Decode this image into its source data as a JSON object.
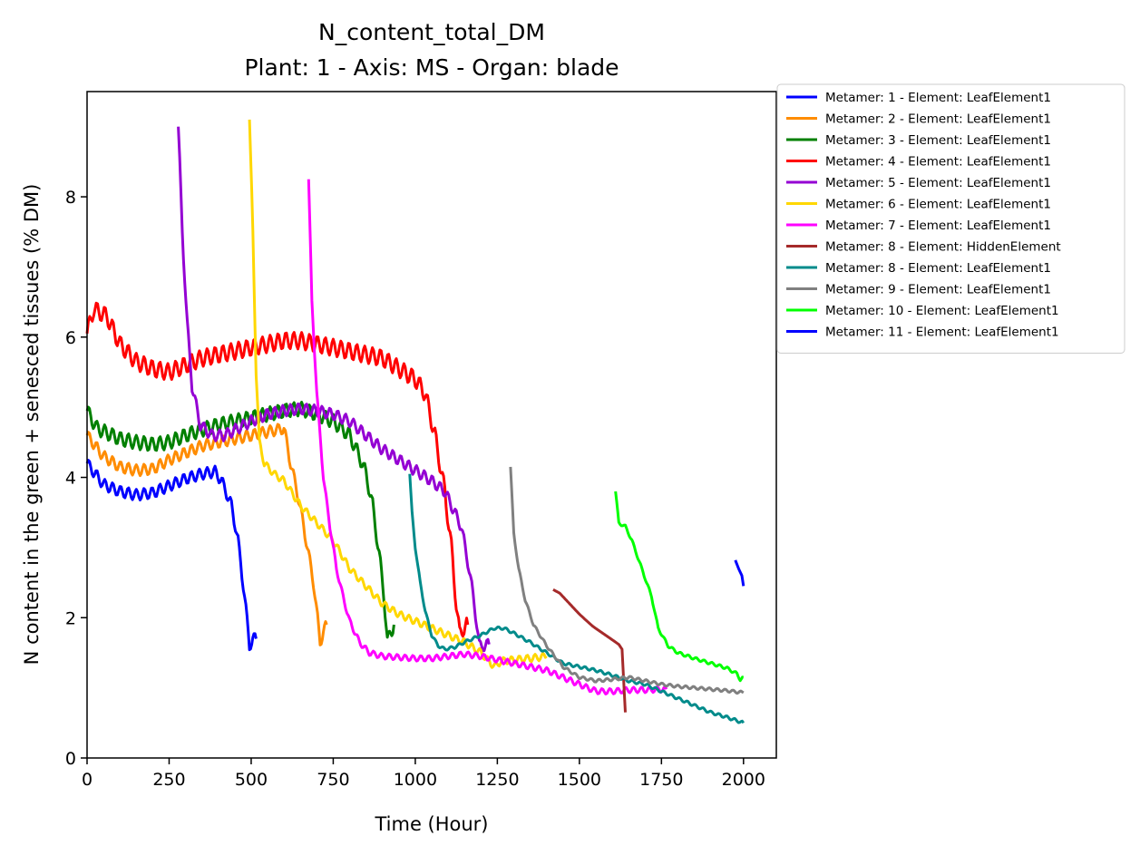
{
  "chart_data": {
    "type": "line",
    "title": "N_content_total_DM",
    "subtitle": "Plant: 1 - Axis: MS - Organ: blade",
    "xlabel": "Time (Hour)",
    "ylabel": "N content in the green + senesced tissues (% DM)",
    "xlim": [
      0,
      2100
    ],
    "ylim": [
      0,
      9.5
    ],
    "xticks": [
      0,
      250,
      500,
      750,
      1000,
      1250,
      1500,
      1750,
      2000
    ],
    "yticks": [
      0,
      2,
      4,
      6,
      8
    ],
    "grid": false,
    "legend_position": "outside-top-right",
    "series": [
      {
        "name": "Metamer: 1 - Element: LeafElement1",
        "color": "#0000ff",
        "oscillation": 0.08,
        "points": [
          [
            0,
            4.2
          ],
          [
            50,
            3.9
          ],
          [
            100,
            3.8
          ],
          [
            150,
            3.75
          ],
          [
            200,
            3.78
          ],
          [
            250,
            3.88
          ],
          [
            300,
            3.98
          ],
          [
            350,
            4.05
          ],
          [
            390,
            4.08
          ],
          [
            410,
            3.95
          ],
          [
            440,
            3.6
          ],
          [
            460,
            3.1
          ],
          [
            480,
            2.3
          ],
          [
            495,
            1.6
          ],
          [
            505,
            1.7
          ],
          [
            515,
            1.7
          ]
        ]
      },
      {
        "name": "Metamer: 2 - Element: LeafElement1",
        "color": "#ff8c00",
        "oscillation": 0.08,
        "points": [
          [
            0,
            4.6
          ],
          [
            50,
            4.3
          ],
          [
            100,
            4.15
          ],
          [
            150,
            4.1
          ],
          [
            200,
            4.12
          ],
          [
            250,
            4.25
          ],
          [
            300,
            4.35
          ],
          [
            350,
            4.45
          ],
          [
            400,
            4.5
          ],
          [
            450,
            4.55
          ],
          [
            500,
            4.6
          ],
          [
            550,
            4.65
          ],
          [
            600,
            4.7
          ],
          [
            620,
            4.2
          ],
          [
            640,
            3.8
          ],
          [
            660,
            3.3
          ],
          [
            690,
            2.5
          ],
          [
            710,
            1.65
          ],
          [
            720,
            1.8
          ],
          [
            730,
            1.9
          ]
        ]
      },
      {
        "name": "Metamer: 3 - Element: LeafElement1",
        "color": "#008000",
        "oscillation": 0.1,
        "points": [
          [
            0,
            4.95
          ],
          [
            30,
            4.7
          ],
          [
            100,
            4.55
          ],
          [
            150,
            4.5
          ],
          [
            200,
            4.47
          ],
          [
            250,
            4.5
          ],
          [
            300,
            4.6
          ],
          [
            350,
            4.68
          ],
          [
            400,
            4.75
          ],
          [
            450,
            4.8
          ],
          [
            500,
            4.85
          ],
          [
            550,
            4.9
          ],
          [
            600,
            4.95
          ],
          [
            650,
            4.98
          ],
          [
            700,
            4.9
          ],
          [
            750,
            4.8
          ],
          [
            800,
            4.6
          ],
          [
            830,
            4.3
          ],
          [
            850,
            4.05
          ],
          [
            870,
            3.6
          ],
          [
            890,
            2.9
          ],
          [
            905,
            2.3
          ],
          [
            915,
            1.65
          ],
          [
            925,
            1.8
          ],
          [
            935,
            1.9
          ]
        ]
      },
      {
        "name": "Metamer: 4 - Element: LeafElement1",
        "color": "#ff0000",
        "oscillation": 0.12,
        "points": [
          [
            0,
            6.05
          ],
          [
            20,
            6.4
          ],
          [
            60,
            6.3
          ],
          [
            100,
            5.9
          ],
          [
            150,
            5.65
          ],
          [
            200,
            5.55
          ],
          [
            250,
            5.5
          ],
          [
            300,
            5.6
          ],
          [
            350,
            5.7
          ],
          [
            400,
            5.75
          ],
          [
            450,
            5.8
          ],
          [
            500,
            5.85
          ],
          [
            550,
            5.9
          ],
          [
            600,
            5.95
          ],
          [
            650,
            5.95
          ],
          [
            700,
            5.9
          ],
          [
            750,
            5.85
          ],
          [
            800,
            5.8
          ],
          [
            850,
            5.75
          ],
          [
            900,
            5.7
          ],
          [
            950,
            5.55
          ],
          [
            1000,
            5.4
          ],
          [
            1030,
            5.2
          ],
          [
            1060,
            4.6
          ],
          [
            1090,
            3.8
          ],
          [
            1110,
            3.0
          ],
          [
            1125,
            2.2
          ],
          [
            1135,
            1.75
          ],
          [
            1145,
            1.85
          ],
          [
            1160,
            1.9
          ]
        ]
      },
      {
        "name": "Metamer: 5 - Element: LeafElement1",
        "color": "#9400d3",
        "oscillation": 0.08,
        "points": [
          [
            278,
            9.0
          ],
          [
            290,
            7.5
          ],
          [
            305,
            6.2
          ],
          [
            320,
            5.3
          ],
          [
            345,
            4.75
          ],
          [
            380,
            4.6
          ],
          [
            420,
            4.6
          ],
          [
            460,
            4.7
          ],
          [
            500,
            4.8
          ],
          [
            550,
            4.9
          ],
          [
            600,
            4.95
          ],
          [
            650,
            4.98
          ],
          [
            700,
            4.95
          ],
          [
            750,
            4.9
          ],
          [
            800,
            4.8
          ],
          [
            850,
            4.6
          ],
          [
            900,
            4.4
          ],
          [
            950,
            4.25
          ],
          [
            1000,
            4.1
          ],
          [
            1050,
            3.95
          ],
          [
            1090,
            3.8
          ],
          [
            1110,
            3.6
          ],
          [
            1140,
            3.3
          ],
          [
            1160,
            2.8
          ],
          [
            1180,
            2.2
          ],
          [
            1195,
            1.6
          ],
          [
            1210,
            1.6
          ],
          [
            1225,
            1.62
          ]
        ]
      },
      {
        "name": "Metamer: 6 - Element: LeafElement1",
        "color": "#ffd700",
        "oscillation": 0.05,
        "points": [
          [
            495,
            9.1
          ],
          [
            505,
            7.5
          ],
          [
            515,
            5.5
          ],
          [
            525,
            4.5
          ],
          [
            540,
            4.2
          ],
          [
            570,
            4.05
          ],
          [
            600,
            3.95
          ],
          [
            650,
            3.6
          ],
          [
            700,
            3.35
          ],
          [
            750,
            3.1
          ],
          [
            800,
            2.7
          ],
          [
            850,
            2.45
          ],
          [
            900,
            2.2
          ],
          [
            950,
            2.05
          ],
          [
            1000,
            1.95
          ],
          [
            1050,
            1.85
          ],
          [
            1100,
            1.75
          ],
          [
            1150,
            1.65
          ],
          [
            1200,
            1.5
          ],
          [
            1230,
            1.35
          ],
          [
            1245,
            1.3
          ],
          [
            1260,
            1.38
          ],
          [
            1300,
            1.4
          ],
          [
            1350,
            1.42
          ],
          [
            1400,
            1.45
          ]
        ]
      },
      {
        "name": "Metamer: 7 - Element: LeafElement1",
        "color": "#ff00ff",
        "oscillation": 0.04,
        "points": [
          [
            675,
            8.25
          ],
          [
            685,
            6.5
          ],
          [
            700,
            5.2
          ],
          [
            720,
            4.0
          ],
          [
            740,
            3.3
          ],
          [
            760,
            2.7
          ],
          [
            780,
            2.3
          ],
          [
            800,
            1.95
          ],
          [
            830,
            1.65
          ],
          [
            860,
            1.5
          ],
          [
            900,
            1.45
          ],
          [
            1000,
            1.42
          ],
          [
            1050,
            1.42
          ],
          [
            1100,
            1.45
          ],
          [
            1150,
            1.48
          ],
          [
            1200,
            1.45
          ],
          [
            1250,
            1.4
          ],
          [
            1300,
            1.35
          ],
          [
            1350,
            1.3
          ],
          [
            1400,
            1.25
          ],
          [
            1450,
            1.15
          ],
          [
            1500,
            1.05
          ],
          [
            1540,
            0.97
          ],
          [
            1560,
            0.95
          ],
          [
            1600,
            0.95
          ],
          [
            1650,
            0.97
          ],
          [
            1700,
            0.97
          ],
          [
            1765,
            0.98
          ]
        ]
      },
      {
        "name": "Metamer: 8 - Element: HiddenElement",
        "color": "#a52a2a",
        "oscillation": 0,
        "points": [
          [
            1420,
            2.4
          ],
          [
            1440,
            2.35
          ],
          [
            1460,
            2.25
          ],
          [
            1500,
            2.05
          ],
          [
            1540,
            1.88
          ],
          [
            1580,
            1.75
          ],
          [
            1620,
            1.62
          ],
          [
            1630,
            1.55
          ],
          [
            1635,
            1.1
          ],
          [
            1640,
            0.65
          ]
        ]
      },
      {
        "name": "Metamer: 8 - Element: LeafElement1",
        "color": "#008b8b",
        "oscillation": 0.02,
        "points": [
          [
            983,
            4.05
          ],
          [
            990,
            3.5
          ],
          [
            1000,
            3.0
          ],
          [
            1015,
            2.5
          ],
          [
            1030,
            2.1
          ],
          [
            1050,
            1.75
          ],
          [
            1070,
            1.6
          ],
          [
            1090,
            1.55
          ],
          [
            1120,
            1.58
          ],
          [
            1150,
            1.65
          ],
          [
            1200,
            1.75
          ],
          [
            1240,
            1.85
          ],
          [
            1270,
            1.85
          ],
          [
            1300,
            1.78
          ],
          [
            1350,
            1.65
          ],
          [
            1400,
            1.5
          ],
          [
            1450,
            1.35
          ],
          [
            1500,
            1.3
          ],
          [
            1550,
            1.25
          ],
          [
            1600,
            1.18
          ],
          [
            1650,
            1.1
          ],
          [
            1700,
            1.05
          ],
          [
            1750,
            0.95
          ],
          [
            1800,
            0.85
          ],
          [
            1850,
            0.75
          ],
          [
            1900,
            0.65
          ],
          [
            1950,
            0.58
          ],
          [
            2000,
            0.5
          ]
        ]
      },
      {
        "name": "Metamer: 9 - Element: LeafElement1",
        "color": "#808080",
        "oscillation": 0.02,
        "points": [
          [
            1290,
            4.15
          ],
          [
            1300,
            3.2
          ],
          [
            1315,
            2.7
          ],
          [
            1335,
            2.25
          ],
          [
            1360,
            1.9
          ],
          [
            1400,
            1.6
          ],
          [
            1450,
            1.3
          ],
          [
            1500,
            1.15
          ],
          [
            1550,
            1.1
          ],
          [
            1600,
            1.12
          ],
          [
            1650,
            1.15
          ],
          [
            1700,
            1.1
          ],
          [
            1750,
            1.05
          ],
          [
            1800,
            1.02
          ],
          [
            1850,
            1.0
          ],
          [
            1900,
            0.98
          ],
          [
            1950,
            0.96
          ],
          [
            2000,
            0.93
          ]
        ]
      },
      {
        "name": "Metamer: 10 - Element: LeafElement1",
        "color": "#00ff00",
        "oscillation": 0.02,
        "points": [
          [
            1610,
            3.8
          ],
          [
            1620,
            3.35
          ],
          [
            1640,
            3.3
          ],
          [
            1660,
            3.1
          ],
          [
            1690,
            2.7
          ],
          [
            1720,
            2.3
          ],
          [
            1740,
            1.85
          ],
          [
            1770,
            1.6
          ],
          [
            1800,
            1.5
          ],
          [
            1850,
            1.42
          ],
          [
            1900,
            1.35
          ],
          [
            1950,
            1.28
          ],
          [
            1980,
            1.2
          ],
          [
            1990,
            1.12
          ],
          [
            2000,
            1.15
          ]
        ]
      },
      {
        "name": "Metamer: 11 - Element: LeafElement1",
        "color": "#0000ff",
        "oscillation": 0,
        "points": [
          [
            1975,
            2.82
          ],
          [
            1985,
            2.7
          ],
          [
            1995,
            2.6
          ],
          [
            2000,
            2.45
          ]
        ]
      }
    ]
  }
}
